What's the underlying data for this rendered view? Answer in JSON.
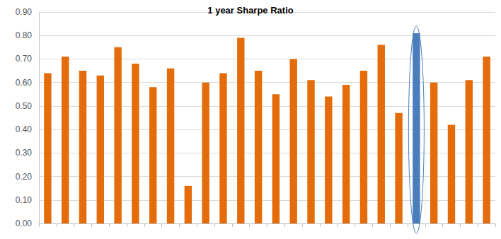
{
  "chart_data": {
    "type": "bar",
    "title": "1 year Sharpe Ratio",
    "categories": [
      null,
      null,
      null,
      null,
      null,
      null,
      null,
      null,
      null,
      null,
      null,
      null,
      null,
      null,
      null,
      null,
      null,
      null,
      null,
      null,
      null,
      null,
      null,
      null,
      null,
      null
    ],
    "values": [
      0.64,
      0.71,
      0.65,
      0.63,
      0.75,
      0.68,
      0.58,
      0.66,
      0.16,
      0.6,
      0.64,
      0.79,
      0.65,
      0.55,
      0.7,
      0.61,
      0.54,
      0.59,
      0.65,
      0.76,
      0.47,
      0.81,
      0.6,
      0.42,
      0.61,
      0.71
    ],
    "colors": [
      "#e46c0a",
      "#e46c0a",
      "#e46c0a",
      "#e46c0a",
      "#e46c0a",
      "#e46c0a",
      "#e46c0a",
      "#e46c0a",
      "#e46c0a",
      "#e46c0a",
      "#e46c0a",
      "#e46c0a",
      "#e46c0a",
      "#e46c0a",
      "#e46c0a",
      "#e46c0a",
      "#e46c0a",
      "#e46c0a",
      "#e46c0a",
      "#e46c0a",
      "#e46c0a",
      "#4a7ebb",
      "#e46c0a",
      "#e46c0a",
      "#e46c0a",
      "#e46c0a"
    ],
    "ylim": [
      0,
      0.9
    ],
    "yticks": [
      {
        "value": 0,
        "label": "0.00"
      },
      {
        "value": 0.1,
        "label": "0.10"
      },
      {
        "value": 0.2,
        "label": "0.20"
      },
      {
        "value": 0.3,
        "label": "0.30"
      },
      {
        "value": 0.4,
        "label": "0.40"
      },
      {
        "value": 0.5,
        "label": "0.50"
      },
      {
        "value": 0.6,
        "label": "0.60"
      },
      {
        "value": 0.7,
        "label": "0.70"
      },
      {
        "value": 0.8,
        "label": "0.80"
      },
      {
        "value": 0.9,
        "label": "0.90"
      }
    ],
    "grid": true,
    "tick_labels": "y"
  }
}
